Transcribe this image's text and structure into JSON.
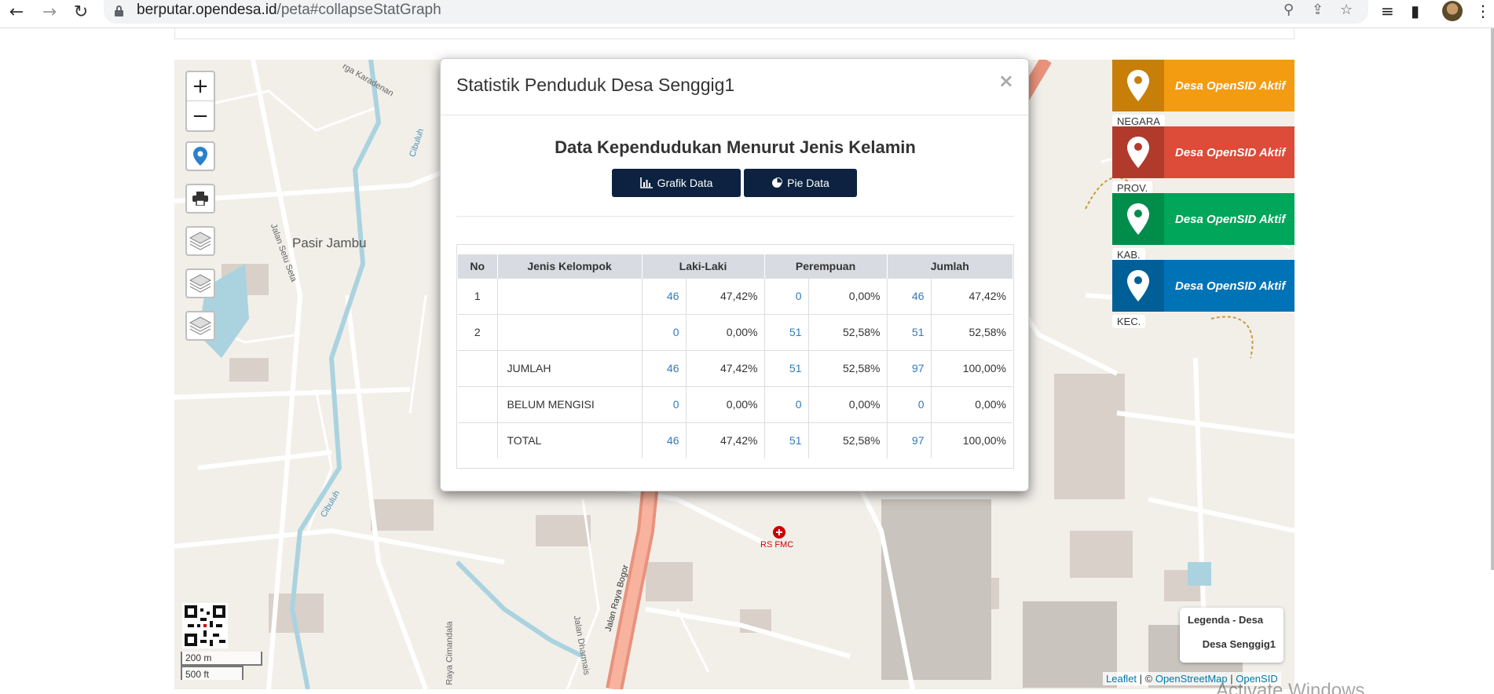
{
  "browser": {
    "url_host": "berputar.opendesa.id",
    "url_path": "/peta#collapseStatGraph"
  },
  "map": {
    "labels": {
      "pasir_jambu": "Pasir Jambu",
      "cibuluh_1": "Cibuluh",
      "cibuluh_2": "Cibuluh",
      "jalan_setu_seta": "Jalan Setu Seta",
      "karadenan": "rga Karadenan",
      "jalan_raya_bogor": "Jalan Raya Bogor",
      "jalan_dharmais": "Jalan Dharmais",
      "raya_cimandala": "Raya Cimandala",
      "rs_fmc": "RS FMC"
    },
    "zoom_in": "+",
    "zoom_out": "−",
    "scale_metric": "200 m",
    "scale_imperial": "500 ft",
    "legend_title": "Legenda - Desa",
    "legend_item": "Desa Senggig1",
    "attribution": {
      "leaflet": "Leaflet",
      "sep1": " | © ",
      "osm": "OpenStreetMap",
      "sep2": " | ",
      "opensid": "OpenSID"
    },
    "watermark": "Activate Windows"
  },
  "panels": [
    {
      "label": "Desa OpenSID Aktif",
      "tag": "NEGARA",
      "color": "#f39c12",
      "icon_color": "#c87f0a"
    },
    {
      "label": "Desa OpenSID Aktif",
      "tag": "PROV.",
      "color": "#dd4b39",
      "icon_color": "#b03a2c"
    },
    {
      "label": "Desa OpenSID Aktif",
      "tag": "KAB.",
      "color": "#00a65a",
      "icon_color": "#008d4c"
    },
    {
      "label": "Desa OpenSID Aktif",
      "tag": "KEC.",
      "color": "#0073b7",
      "icon_color": "#005f96"
    }
  ],
  "modal": {
    "title": "Statistik Penduduk Desa Senggig1",
    "close": "×",
    "heading": "Data Kependudukan Menurut Jenis Kelamin",
    "btn_grafik": "Grafik Data",
    "btn_pie": "Pie Data",
    "table": {
      "headers": [
        "No",
        "Jenis Kelompok",
        "Laki-Laki",
        "Perempuan",
        "Jumlah"
      ],
      "rows": [
        {
          "no": "1",
          "kelompok": "",
          "l_n": "46",
          "l_p": "47,42%",
          "p_n": "0",
          "p_p": "0,00%",
          "j_n": "46",
          "j_p": "47,42%"
        },
        {
          "no": "2",
          "kelompok": "",
          "l_n": "0",
          "l_p": "0,00%",
          "p_n": "51",
          "p_p": "52,58%",
          "j_n": "51",
          "j_p": "52,58%"
        },
        {
          "no": "",
          "kelompok": "JUMLAH",
          "l_n": "46",
          "l_p": "47,42%",
          "p_n": "51",
          "p_p": "52,58%",
          "j_n": "97",
          "j_p": "100,00%"
        },
        {
          "no": "",
          "kelompok": "BELUM MENGISI",
          "l_n": "0",
          "l_p": "0,00%",
          "p_n": "0",
          "p_p": "0,00%",
          "j_n": "0",
          "j_p": "0,00%"
        },
        {
          "no": "",
          "kelompok": "TOTAL",
          "l_n": "46",
          "l_p": "47,42%",
          "p_n": "51",
          "p_p": "52,58%",
          "j_n": "97",
          "j_p": "100,00%"
        }
      ]
    }
  }
}
